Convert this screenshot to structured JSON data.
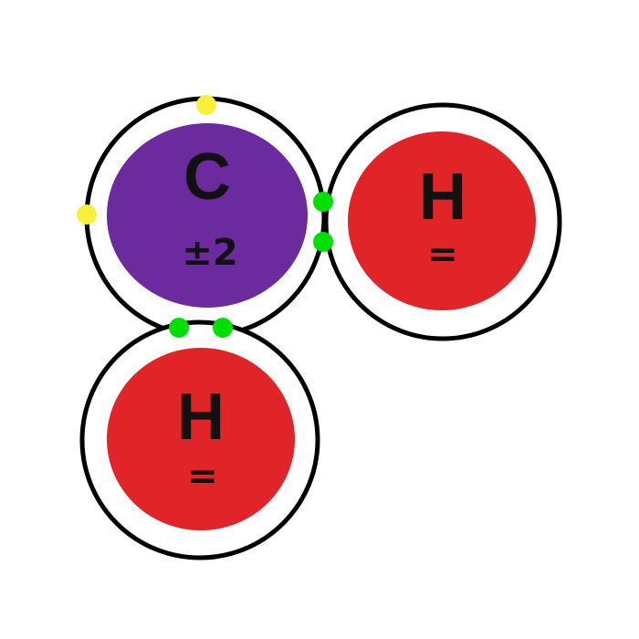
{
  "atoms": [
    {
      "symbol": "C",
      "charge": "±2",
      "color": "#6b2a9e"
    },
    {
      "symbol": "H",
      "charge": "=",
      "color": "#e02428"
    },
    {
      "symbol": "H",
      "charge": "=",
      "color": "#e02428"
    }
  ],
  "colors": {
    "shell": "#000000",
    "bonding_electron": "#00e000",
    "lone_electron": "#f7f13a"
  }
}
